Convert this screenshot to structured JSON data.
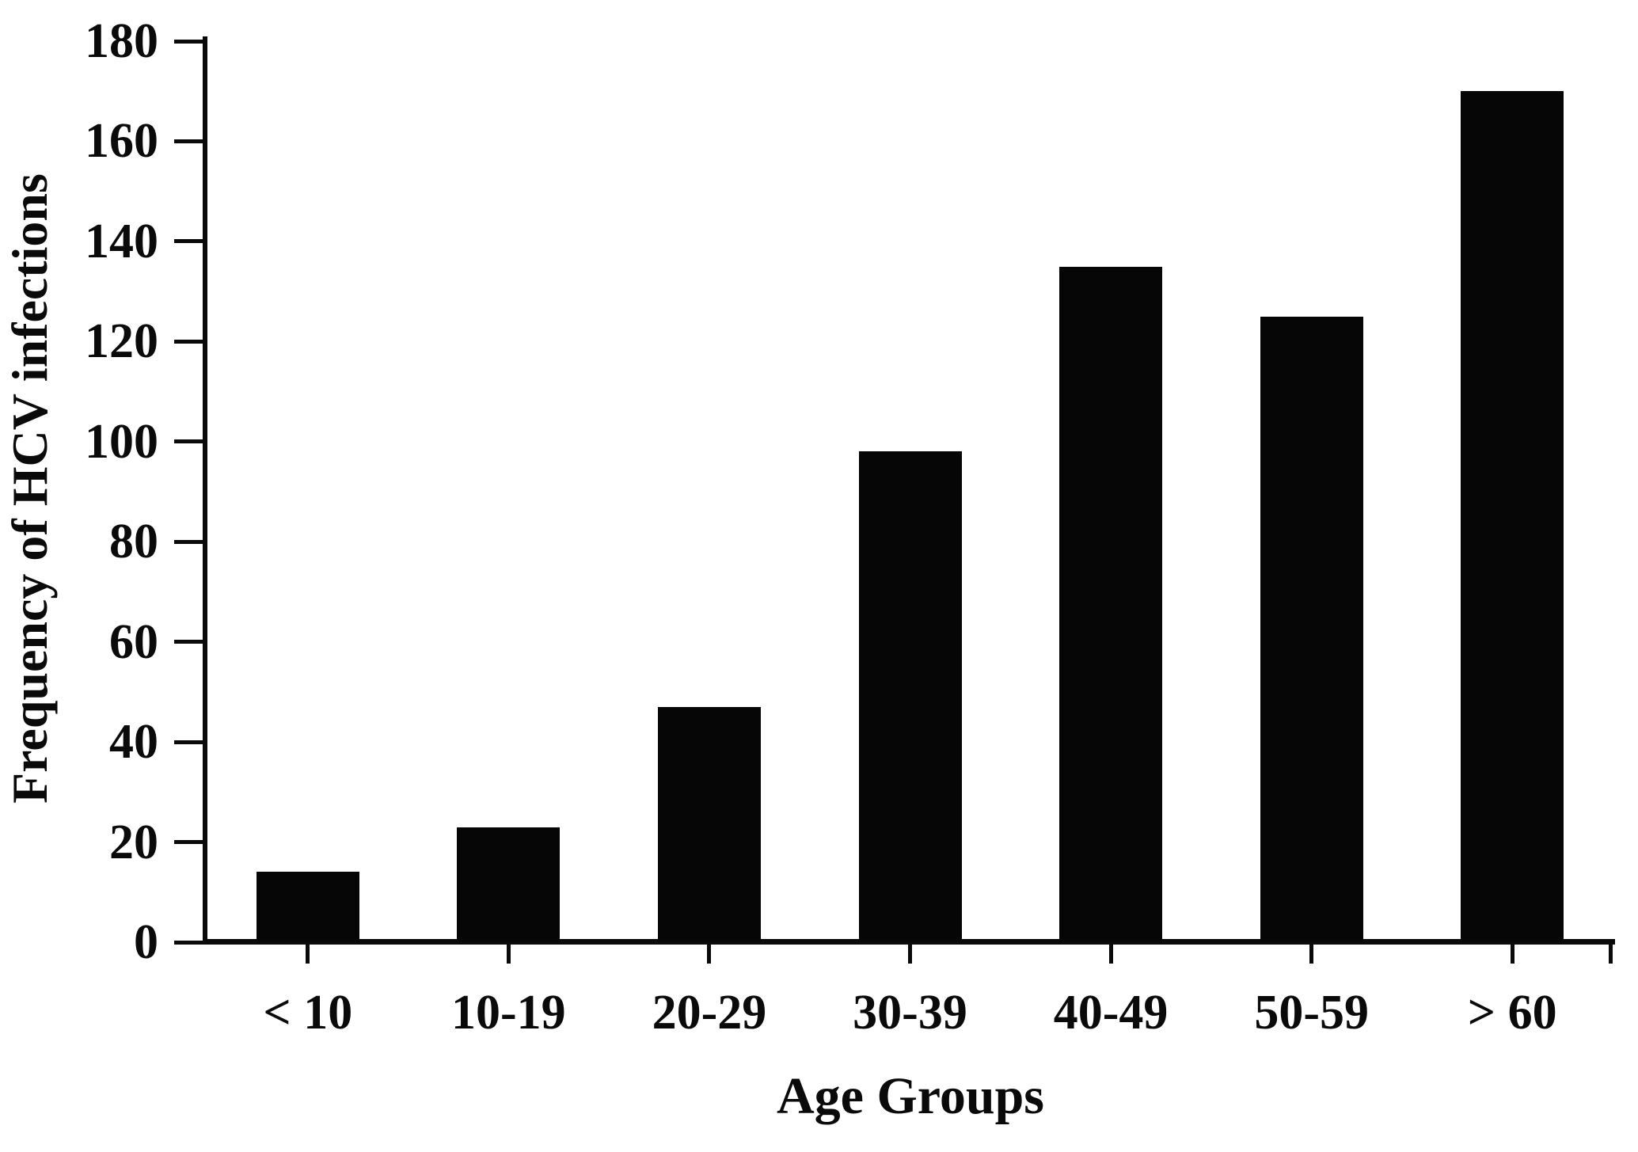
{
  "chart_data": {
    "type": "bar",
    "xlabel": "Age Groups",
    "ylabel": "Frequency of HCV infections",
    "categories": [
      "< 10",
      "10-19",
      "20-29",
      "30-39",
      "40-49",
      "50-59",
      "> 60"
    ],
    "values": [
      14,
      23,
      47,
      98,
      135,
      125,
      170
    ],
    "ylim": [
      0,
      180
    ],
    "ytick_step": 20,
    "grid": false,
    "legend_position": "none",
    "bar_color": "#060606",
    "axis_color": "#0a0a0a",
    "text_color": "#0a0a0a",
    "background_color": "#ffffff"
  }
}
